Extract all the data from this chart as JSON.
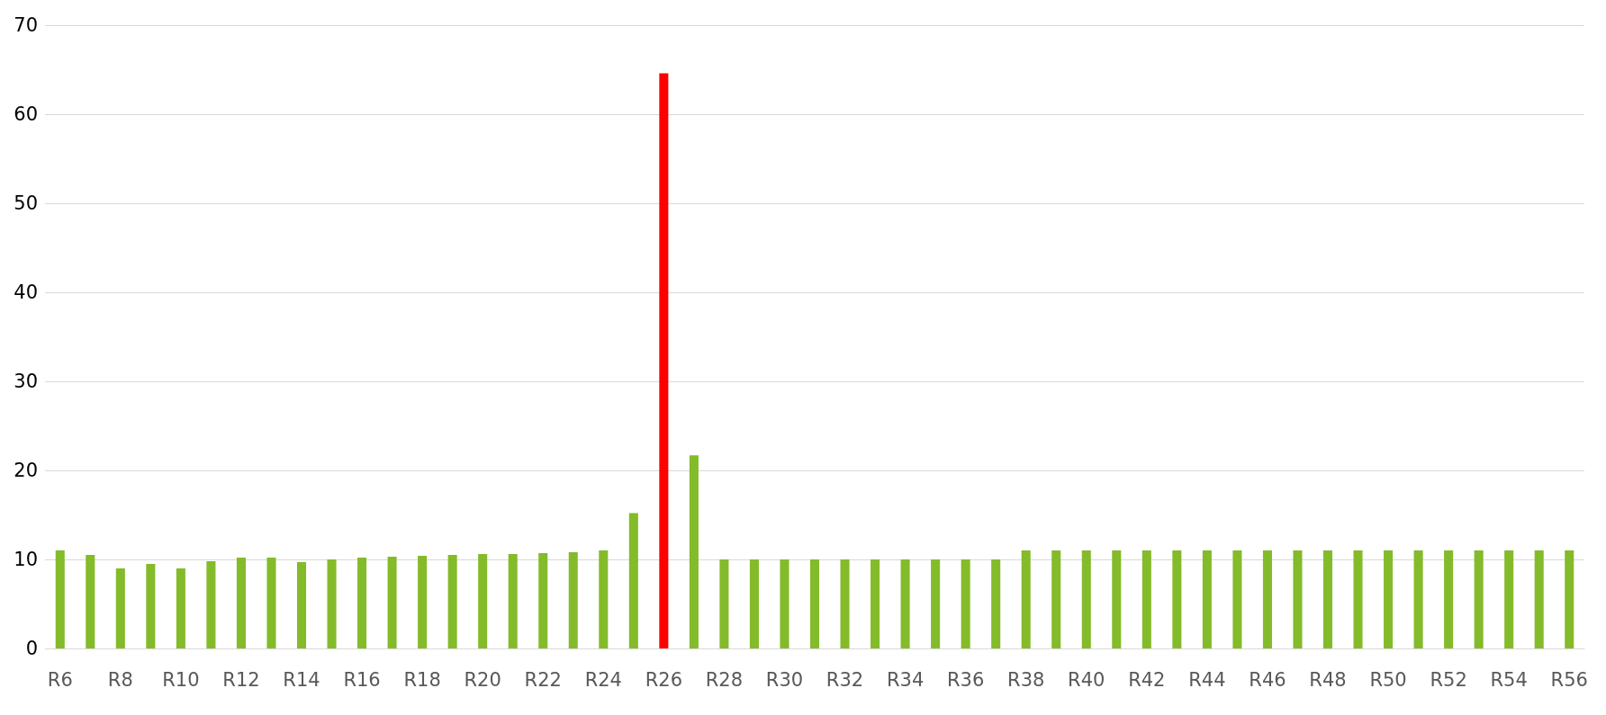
{
  "chart_data": {
    "type": "bar",
    "categories": [
      "R6",
      null,
      "R8",
      null,
      "R10",
      null,
      "R12",
      null,
      "R14",
      null,
      "R16",
      null,
      "R18",
      null,
      "R20",
      null,
      "R22",
      null,
      "R24",
      null,
      "R26",
      null,
      "R28",
      null,
      "R30",
      null,
      "R32",
      null,
      "R34",
      null,
      "R36",
      null,
      "R38",
      null,
      "R40",
      null,
      "R42",
      null,
      "R44",
      null,
      "R46",
      null,
      "R48",
      null,
      "R50",
      null,
      "R52",
      null,
      "R54",
      null,
      "R56"
    ],
    "values": [
      11.0,
      10.5,
      9.0,
      9.5,
      9.0,
      9.8,
      10.2,
      10.2,
      9.7,
      10.0,
      10.2,
      10.3,
      10.4,
      10.5,
      10.6,
      10.6,
      10.7,
      10.8,
      11.0,
      15.2,
      64.6,
      21.7,
      10.0,
      10.0,
      10.0,
      10.0,
      10.0,
      10.0,
      10.0,
      10.0,
      10.0,
      10.0,
      11.0,
      11.0,
      11.0,
      11.0,
      11.0,
      11.0,
      11.0,
      11.0,
      11.0,
      11.0,
      11.0,
      11.0,
      11.0,
      11.0,
      11.0,
      11.0,
      11.0,
      11.0,
      11.0
    ],
    "colors": [
      "#84bb2a",
      "#84bb2a",
      "#84bb2a",
      "#84bb2a",
      "#84bb2a",
      "#84bb2a",
      "#84bb2a",
      "#84bb2a",
      "#84bb2a",
      "#84bb2a",
      "#84bb2a",
      "#84bb2a",
      "#84bb2a",
      "#84bb2a",
      "#84bb2a",
      "#84bb2a",
      "#84bb2a",
      "#84bb2a",
      "#84bb2a",
      "#84bb2a",
      "#ff0000",
      "#84bb2a",
      "#84bb2a",
      "#84bb2a",
      "#84bb2a",
      "#84bb2a",
      "#84bb2a",
      "#84bb2a",
      "#84bb2a",
      "#84bb2a",
      "#84bb2a",
      "#84bb2a",
      "#84bb2a",
      "#84bb2a",
      "#84bb2a",
      "#84bb2a",
      "#84bb2a",
      "#84bb2a",
      "#84bb2a",
      "#84bb2a",
      "#84bb2a",
      "#84bb2a",
      "#84bb2a",
      "#84bb2a",
      "#84bb2a",
      "#84bb2a",
      "#84bb2a",
      "#84bb2a",
      "#84bb2a",
      "#84bb2a",
      "#84bb2a"
    ],
    "ylim": [
      0,
      70
    ],
    "yticks": [
      0,
      10,
      20,
      30,
      40,
      50,
      60,
      70
    ],
    "grid": "y"
  }
}
